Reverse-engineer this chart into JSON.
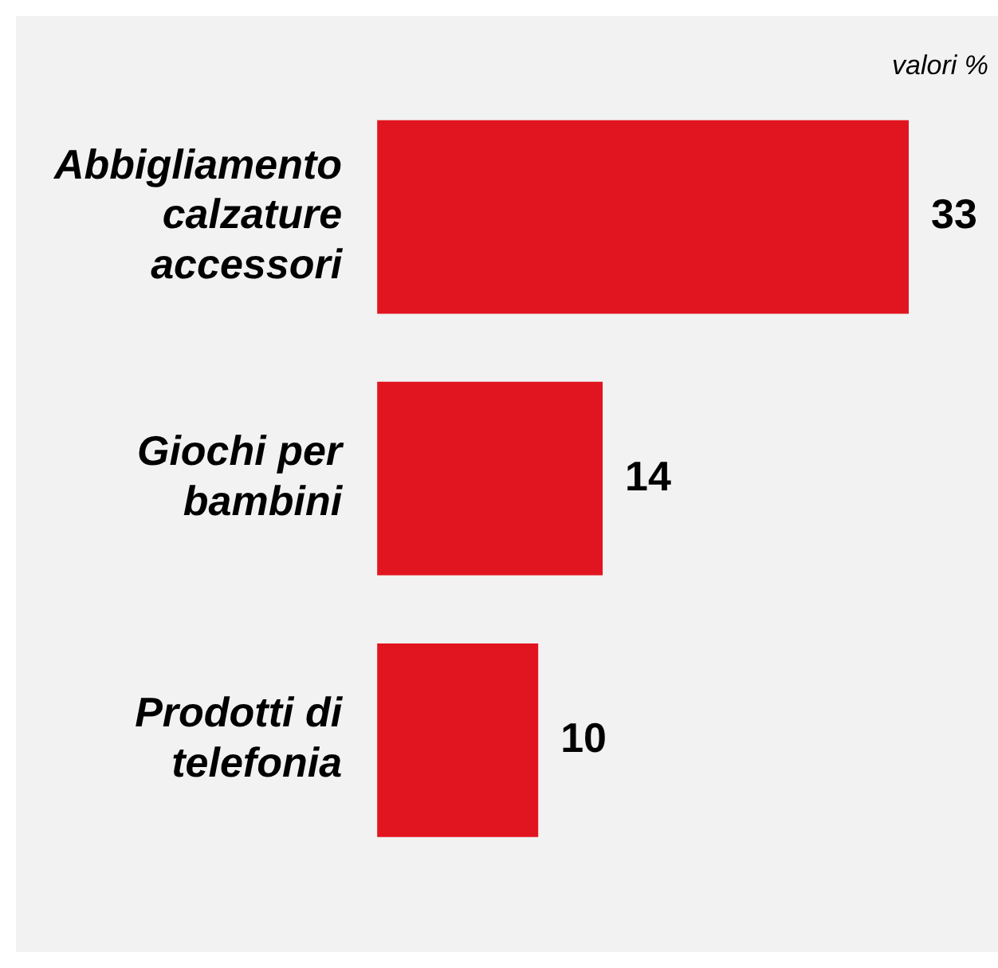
{
  "chart_data": {
    "type": "bar",
    "orientation": "horizontal",
    "categories": [
      "Abbigliamento calzature accessori",
      "Giochi per bambini",
      "Prodotti di telefonia"
    ],
    "values": [
      33,
      14,
      10
    ],
    "color": "#e1151f",
    "data_labels": true,
    "legend": false,
    "annotations": [
      "valori %"
    ]
  }
}
